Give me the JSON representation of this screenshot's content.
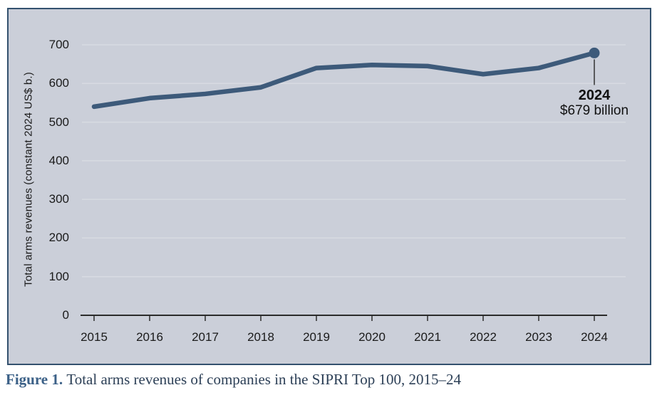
{
  "chart_data": {
    "type": "line",
    "title": "",
    "xlabel": "",
    "ylabel": "Total arms revenues (constant 2024 US$ b.)",
    "categories": [
      "2015",
      "2016",
      "2017",
      "2018",
      "2019",
      "2020",
      "2021",
      "2022",
      "2023",
      "2024"
    ],
    "values": [
      540,
      562,
      573,
      590,
      640,
      648,
      645,
      624,
      640,
      679
    ],
    "ylim": [
      0,
      700
    ],
    "yticks": [
      0,
      100,
      200,
      300,
      400,
      500,
      600,
      700
    ],
    "grid": "horizontal-only",
    "legend": "none",
    "annotation": {
      "year_label": "2024",
      "value_label": "$679 billion",
      "attached_to": "last-point",
      "marker": "filled-dot"
    },
    "colors": {
      "line": "#3d5a7a",
      "marker": "#3d5a7a",
      "plot_background": "#cbcfd9",
      "border": "#33516e",
      "gridline": "#d8dbe2",
      "axis": "#2b2b2b",
      "leader": "#333333",
      "text": "#1a1a1a"
    }
  },
  "caption": {
    "label": "Figure 1.",
    "text": "Total arms revenues of companies in the SIPRI Top 100, 2015–24",
    "label_color": "#3b6087",
    "text_color": "#2d4057"
  }
}
